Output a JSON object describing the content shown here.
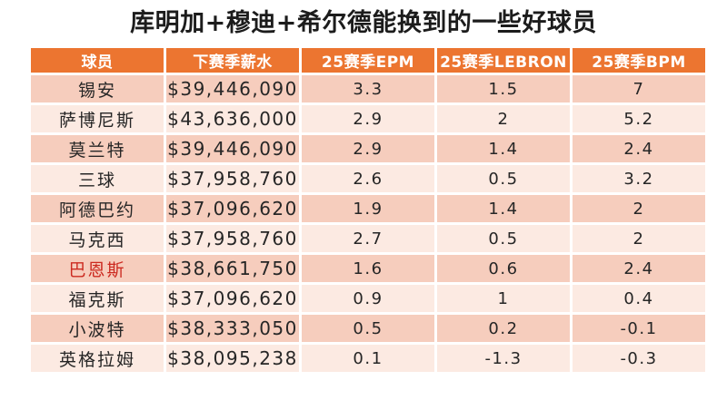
{
  "page": {
    "title": "库明加+穆迪+希尔德能换到的一些好球员",
    "background": "#ffffff"
  },
  "colors": {
    "header_bg": "#ec7530",
    "header_text": "#ffffff",
    "row_band_dark": "#f6cdbd",
    "row_band_light": "#fceae2",
    "body_text": "#262626",
    "highlight_player_red": "#cc2a20"
  },
  "table": {
    "columns": [
      {
        "label": "球员"
      },
      {
        "label": "下赛季薪水"
      },
      {
        "label": "25赛季EPM"
      },
      {
        "label": "25赛季LEBRON"
      },
      {
        "label": "25赛季BPM"
      }
    ],
    "rows": [
      {
        "player": "锡安",
        "salary": "$39,446,090",
        "epm": "3.3",
        "lebron": "1.5",
        "bpm": "7"
      },
      {
        "player": "萨博尼斯",
        "salary": "$43,636,000",
        "epm": "2.9",
        "lebron": "2",
        "bpm": "5.2"
      },
      {
        "player": "莫兰特",
        "salary": "$39,446,090",
        "epm": "2.9",
        "lebron": "1.4",
        "bpm": "2.4"
      },
      {
        "player": "三球",
        "salary": "$37,958,760",
        "epm": "2.6",
        "lebron": "0.5",
        "bpm": "3.2"
      },
      {
        "player": "阿德巴约",
        "salary": "$37,096,620",
        "epm": "1.9",
        "lebron": "1.4",
        "bpm": "2"
      },
      {
        "player": "马克西",
        "salary": "$37,958,760",
        "epm": "2.7",
        "lebron": "0.5",
        "bpm": "2"
      },
      {
        "player": "巴恩斯",
        "salary": "$38,661,750",
        "epm": "1.6",
        "lebron": "0.6",
        "bpm": "2.4",
        "name_style": "color:#cc2a20"
      },
      {
        "player": "福克斯",
        "salary": "$37,096,620",
        "epm": "0.9",
        "lebron": "1",
        "bpm": "0.4"
      },
      {
        "player": "小波特",
        "salary": "$38,333,050",
        "epm": "0.5",
        "lebron": "0.2",
        "bpm": "-0.1"
      },
      {
        "player": "英格拉姆",
        "salary": "$38,095,238",
        "epm": "0.1",
        "lebron": "-1.3",
        "bpm": "-0.3"
      }
    ]
  },
  "chart_data": {
    "type": "table",
    "title": "库明加+穆迪+希尔德能换到的一些好球员",
    "columns": [
      "球员",
      "下赛季薪水",
      "25赛季EPM",
      "25赛季LEBRON",
      "25赛季BPM"
    ],
    "rows": [
      [
        "锡安",
        "$39,446,090",
        3.3,
        1.5,
        7
      ],
      [
        "萨博尼斯",
        "$43,636,000",
        2.9,
        2,
        5.2
      ],
      [
        "莫兰特",
        "$39,446,090",
        2.9,
        1.4,
        2.4
      ],
      [
        "三球",
        "$37,958,760",
        2.6,
        0.5,
        3.2
      ],
      [
        "阿德巴约",
        "$37,096,620",
        1.9,
        1.4,
        2
      ],
      [
        "马克西",
        "$37,958,760",
        2.7,
        0.5,
        2
      ],
      [
        "巴恩斯",
        "$38,661,750",
        1.6,
        0.6,
        2.4
      ],
      [
        "福克斯",
        "$37,096,620",
        0.9,
        1,
        0.4
      ],
      [
        "小波特",
        "$38,333,050",
        0.5,
        0.2,
        -0.1
      ],
      [
        "英格拉姆",
        "$38,095,238",
        0.1,
        -1.3,
        -0.3
      ]
    ],
    "notes": "banded-row data table; row 巴恩斯 player name shown in red",
    "legend_position": "none",
    "grid": false
  }
}
